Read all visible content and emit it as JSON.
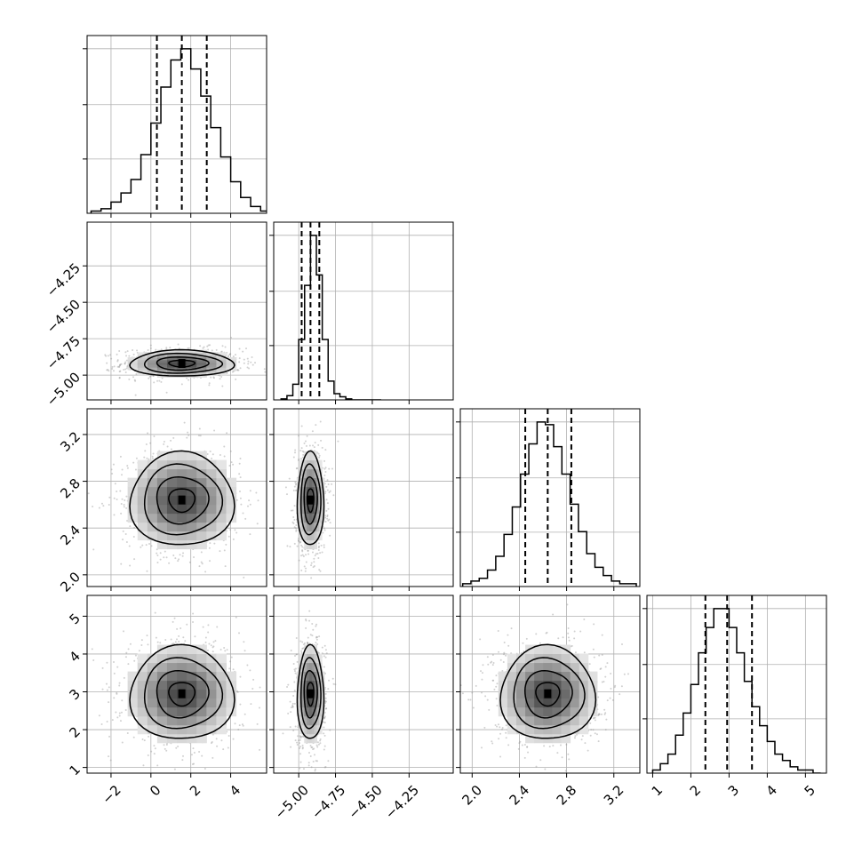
{
  "chart_data": {
    "type": "corner",
    "grid": true,
    "parameters": [
      {
        "range": [
          -3.2,
          5.8
        ],
        "ticks": [
          -2,
          0,
          2,
          4
        ],
        "tick_labels": [
          "−2",
          "0",
          "2",
          "4"
        ],
        "median": 1.55,
        "quantiles": [
          0.3,
          1.55,
          2.8
        ],
        "sigma": 1.3,
        "hist_bins": [
          -3.0,
          -2.5,
          -2.0,
          -1.5,
          -1.0,
          -0.5,
          0.0,
          0.5,
          1.0,
          1.5,
          2.0,
          2.5,
          3.0,
          3.5,
          4.0,
          4.5,
          5.0,
          5.5
        ],
        "hist_counts": [
          1,
          2,
          5,
          9,
          15,
          26,
          40,
          56,
          68,
          73,
          64,
          52,
          38,
          25,
          14,
          7,
          3,
          1
        ]
      },
      {
        "range": [
          -5.17,
          -3.95
        ],
        "ticks": [
          -5.0,
          -4.75,
          -4.5,
          -4.25
        ],
        "tick_labels": [
          "−5.00",
          "−4.75",
          "−4.50",
          "−4.25"
        ],
        "median": -4.92,
        "quantiles": [
          -4.98,
          -4.92,
          -4.86
        ],
        "sigma": 0.045,
        "hist_bins": [
          -5.12,
          -5.08,
          -5.04,
          -5.0,
          -4.96,
          -4.92,
          -4.88,
          -4.84,
          -4.8,
          -4.76,
          -4.72,
          -4.68,
          -4.64,
          -4.6,
          -4.56,
          -4.52,
          -4.48
        ],
        "hist_counts": [
          1,
          4,
          15,
          58,
          110,
          158,
          120,
          58,
          18,
          6,
          3,
          1,
          0,
          0,
          0,
          0,
          0
        ]
      },
      {
        "range": [
          1.9,
          3.42
        ],
        "ticks": [
          2.0,
          2.4,
          2.8,
          3.2
        ],
        "tick_labels": [
          "2.0",
          "2.4",
          "2.8",
          "3.2"
        ],
        "median": 2.64,
        "quantiles": [
          2.45,
          2.64,
          2.84
        ],
        "sigma": 0.2,
        "hist_bins": [
          1.92,
          1.99,
          2.06,
          2.13,
          2.2,
          2.27,
          2.34,
          2.41,
          2.48,
          2.55,
          2.62,
          2.69,
          2.76,
          2.83,
          2.9,
          2.97,
          3.04,
          3.11,
          3.18,
          3.25,
          3.32
        ],
        "hist_counts": [
          1,
          2,
          3,
          6,
          11,
          19,
          29,
          41,
          52,
          60,
          59,
          51,
          41,
          30,
          20,
          12,
          7,
          4,
          2,
          1,
          1
        ]
      },
      {
        "range": [
          0.85,
          5.55
        ],
        "ticks": [
          1,
          2,
          3,
          4,
          5
        ],
        "tick_labels": [
          "1",
          "2",
          "3",
          "4",
          "5"
        ],
        "median": 2.95,
        "quantiles": [
          2.38,
          2.95,
          3.6
        ],
        "sigma": 0.62,
        "hist_bins": [
          1.0,
          1.2,
          1.4,
          1.6,
          1.8,
          2.0,
          2.2,
          2.4,
          2.6,
          2.8,
          3.0,
          3.2,
          3.4,
          3.6,
          3.8,
          4.0,
          4.2,
          4.4,
          4.6,
          4.8,
          5.0,
          5.2
        ],
        "hist_counts": [
          1,
          3,
          6,
          12,
          19,
          28,
          38,
          46,
          52,
          52,
          46,
          38,
          29,
          21,
          15,
          10,
          6,
          4,
          2,
          1,
          1,
          0
        ]
      }
    ]
  }
}
